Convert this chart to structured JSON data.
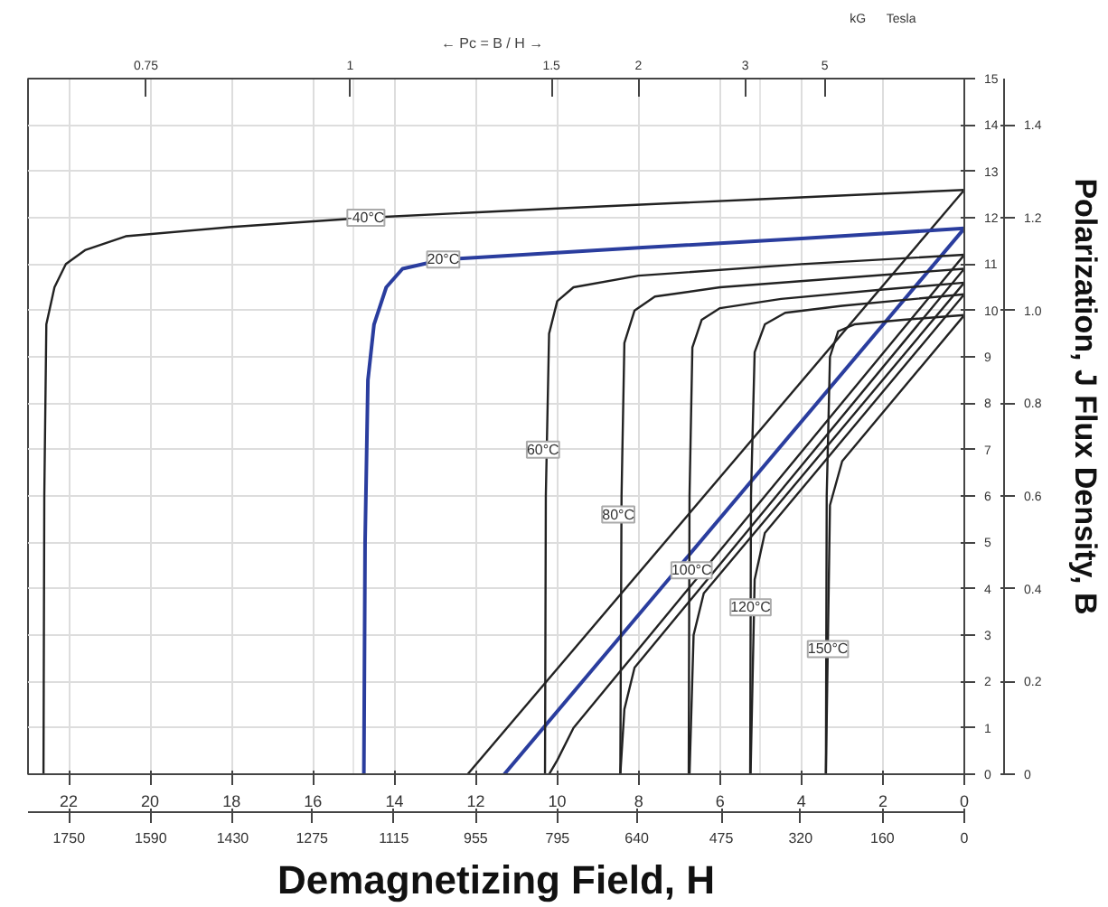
{
  "chart_data": {
    "type": "line",
    "xlabel": "Demagnetizing Field, H",
    "y2label": "Polarization,  J      Flux Density,  B",
    "xlim": [
      23,
      0
    ],
    "ylim": [
      0,
      15
    ],
    "xticks": [
      22,
      20,
      18,
      16,
      14,
      12,
      10,
      8,
      6,
      4,
      2,
      0
    ],
    "yticks": [
      0,
      1,
      2,
      3,
      4,
      5,
      6,
      7,
      8,
      9,
      10,
      11,
      12,
      13,
      14,
      15
    ],
    "x2lim": [
      1830,
      0
    ],
    "x2ticks": [
      1750,
      1590,
      1430,
      1275,
      1115,
      955,
      795,
      640,
      475,
      320,
      160,
      0
    ],
    "y2lim": [
      0,
      1.5
    ],
    "y2ticks": [
      0,
      0.2,
      0.4,
      0.6,
      0.8,
      {
        "value": 1,
        "label": "1.0"
      },
      1.2,
      1.4
    ],
    "grid": true,
    "marker": "none",
    "line_style": "solid",
    "series": [
      {
        "color": "#222222",
        "x": [
          22.62,
          22.6,
          22.55,
          22.35,
          22.07,
          21.6,
          20.6,
          18,
          14.7,
          10,
          5,
          0
        ],
        "values": [
          0,
          6,
          9.7,
          10.5,
          11.0,
          11.3,
          11.6,
          11.8,
          12.0,
          12.2,
          12.4,
          12.6
        ]
      },
      {
        "color": "#222222",
        "x": [
          0,
          12.2
        ],
        "values": [
          12.6,
          0
        ]
      },
      {
        "color": "#2a3d9e",
        "x": [
          14.75,
          14.72,
          14.65,
          14.5,
          14.2,
          13.8,
          12.8,
          8,
          4,
          0
        ],
        "values": [
          0,
          5,
          8.5,
          9.7,
          10.5,
          10.9,
          11.1,
          11.35,
          11.55,
          11.77
        ]
      },
      {
        "color": "#2a3d9e",
        "x": [
          0,
          11.3
        ],
        "values": [
          11.77,
          0
        ]
      },
      {
        "color": "#222222",
        "x": [
          10.3,
          10.28,
          10.2,
          10.0,
          9.6,
          8,
          4,
          0
        ],
        "values": [
          0,
          6,
          9.5,
          10.2,
          10.5,
          10.75,
          11.0,
          11.2
        ]
      },
      {
        "color": "#222222",
        "x": [
          0,
          9.6,
          10.0,
          10.2
        ],
        "values": [
          11.2,
          1.0,
          0.3,
          0
        ]
      },
      {
        "color": "#222222",
        "x": [
          8.45,
          8.42,
          8.35,
          8.1,
          7.6,
          6,
          3,
          0
        ],
        "values": [
          0,
          6,
          9.3,
          10.0,
          10.3,
          10.5,
          10.7,
          10.9
        ]
      },
      {
        "color": "#222222",
        "x": [
          0,
          8.1,
          8.35,
          8.45
        ],
        "values": [
          10.9,
          2.3,
          1.4,
          0
        ]
      },
      {
        "color": "#222222",
        "x": [
          6.77,
          6.75,
          6.68,
          6.45,
          6.0,
          4.5,
          2,
          0
        ],
        "values": [
          0,
          6,
          9.2,
          9.8,
          10.05,
          10.25,
          10.45,
          10.6
        ]
      },
      {
        "color": "#222222",
        "x": [
          0,
          6.4,
          6.65,
          6.75
        ],
        "values": [
          10.6,
          3.9,
          3.0,
          0
        ]
      },
      {
        "color": "#222222",
        "x": [
          5.26,
          5.24,
          5.15,
          4.9,
          4.4,
          3,
          0
        ],
        "values": [
          0,
          6,
          9.1,
          9.7,
          9.95,
          10.1,
          10.35
        ]
      },
      {
        "color": "#222222",
        "x": [
          0,
          4.9,
          5.15,
          5.25
        ],
        "values": [
          10.35,
          5.2,
          4.2,
          0
        ]
      },
      {
        "color": "#222222",
        "x": [
          3.4,
          3.38,
          3.3,
          3.1,
          2.7,
          1.5,
          0
        ],
        "values": [
          0,
          6,
          9.0,
          9.55,
          9.7,
          9.8,
          9.9
        ]
      },
      {
        "color": "#222222",
        "x": [
          0,
          3.0,
          3.3,
          3.4
        ],
        "values": [
          9.9,
          6.75,
          5.8,
          0
        ]
      }
    ],
    "annotations": [
      "kG",
      "Tesla",
      "←  Pc = B / H  →",
      "0.75",
      "1",
      "1.5",
      "2",
      "3",
      "5",
      {
        "text": "-40°C",
        "x": 14.7,
        "y": 12.0
      },
      {
        "text": "20°C",
        "x": 12.8,
        "y": 11.1
      },
      {
        "text": "60°C",
        "x": 10.35,
        "y": 7.0
      },
      {
        "text": "80°C",
        "x": 8.5,
        "y": 5.6
      },
      {
        "text": "100°C",
        "x": 6.7,
        "y": 4.4
      },
      {
        "text": "120°C",
        "x": 5.25,
        "y": 3.6
      },
      {
        "text": "150°C",
        "x": 3.35,
        "y": 2.7
      }
    ]
  }
}
